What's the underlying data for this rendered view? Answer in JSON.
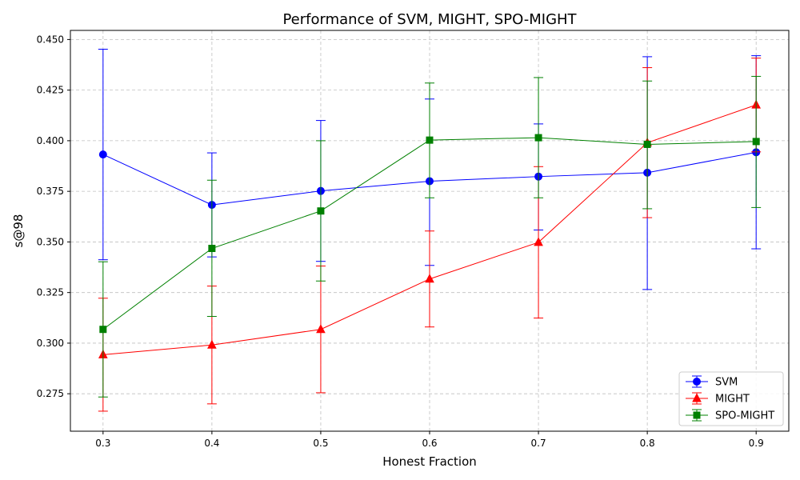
{
  "chart_data": {
    "type": "line",
    "title": "Performance of SVM, MIGHT, SPO-MIGHT",
    "xlabel": "Honest Fraction",
    "ylabel": "s@98",
    "x": [
      0.3,
      0.4,
      0.5,
      0.6,
      0.7,
      0.8,
      0.9
    ],
    "xlim": [
      0.27,
      0.93
    ],
    "ylim": [
      0.2565,
      0.4545
    ],
    "x_ticks": [
      "0.3",
      "0.4",
      "0.5",
      "0.6",
      "0.7",
      "0.8",
      "0.9"
    ],
    "y_ticks": [
      "0.275",
      "0.300",
      "0.325",
      "0.350",
      "0.375",
      "0.400",
      "0.425",
      "0.450"
    ],
    "grid": true,
    "legend_position": "lower-right",
    "series": [
      {
        "name": "SVM",
        "color": "#0000ff",
        "marker": "circle",
        "values": [
          0.3932,
          0.3683,
          0.3752,
          0.38,
          0.3823,
          0.3842,
          0.3943
        ],
        "lower": [
          0.3412,
          0.3426,
          0.3404,
          0.3384,
          0.3559,
          0.3265,
          0.3466
        ],
        "upper": [
          0.4452,
          0.394,
          0.41,
          0.4206,
          0.4083,
          0.4415,
          0.442
        ]
      },
      {
        "name": "MIGHT",
        "color": "#ff0000",
        "marker": "triangle",
        "values": [
          0.2943,
          0.2991,
          0.3068,
          0.3317,
          0.3498,
          0.399,
          0.4177
        ],
        "lower": [
          0.2664,
          0.27,
          0.2755,
          0.308,
          0.3124,
          0.362,
          0.3945
        ],
        "upper": [
          0.3222,
          0.3282,
          0.3381,
          0.3554,
          0.3872,
          0.4361,
          0.4408
        ]
      },
      {
        "name": "SPO-MIGHT",
        "color": "#008000",
        "marker": "square",
        "values": [
          0.3068,
          0.3468,
          0.3653,
          0.4003,
          0.4015,
          0.3982,
          0.3996
        ],
        "lower": [
          0.2734,
          0.3132,
          0.3307,
          0.3718,
          0.3718,
          0.3664,
          0.367
        ],
        "upper": [
          0.3402,
          0.3805,
          0.4,
          0.4285,
          0.4312,
          0.4295,
          0.4318
        ]
      }
    ]
  }
}
